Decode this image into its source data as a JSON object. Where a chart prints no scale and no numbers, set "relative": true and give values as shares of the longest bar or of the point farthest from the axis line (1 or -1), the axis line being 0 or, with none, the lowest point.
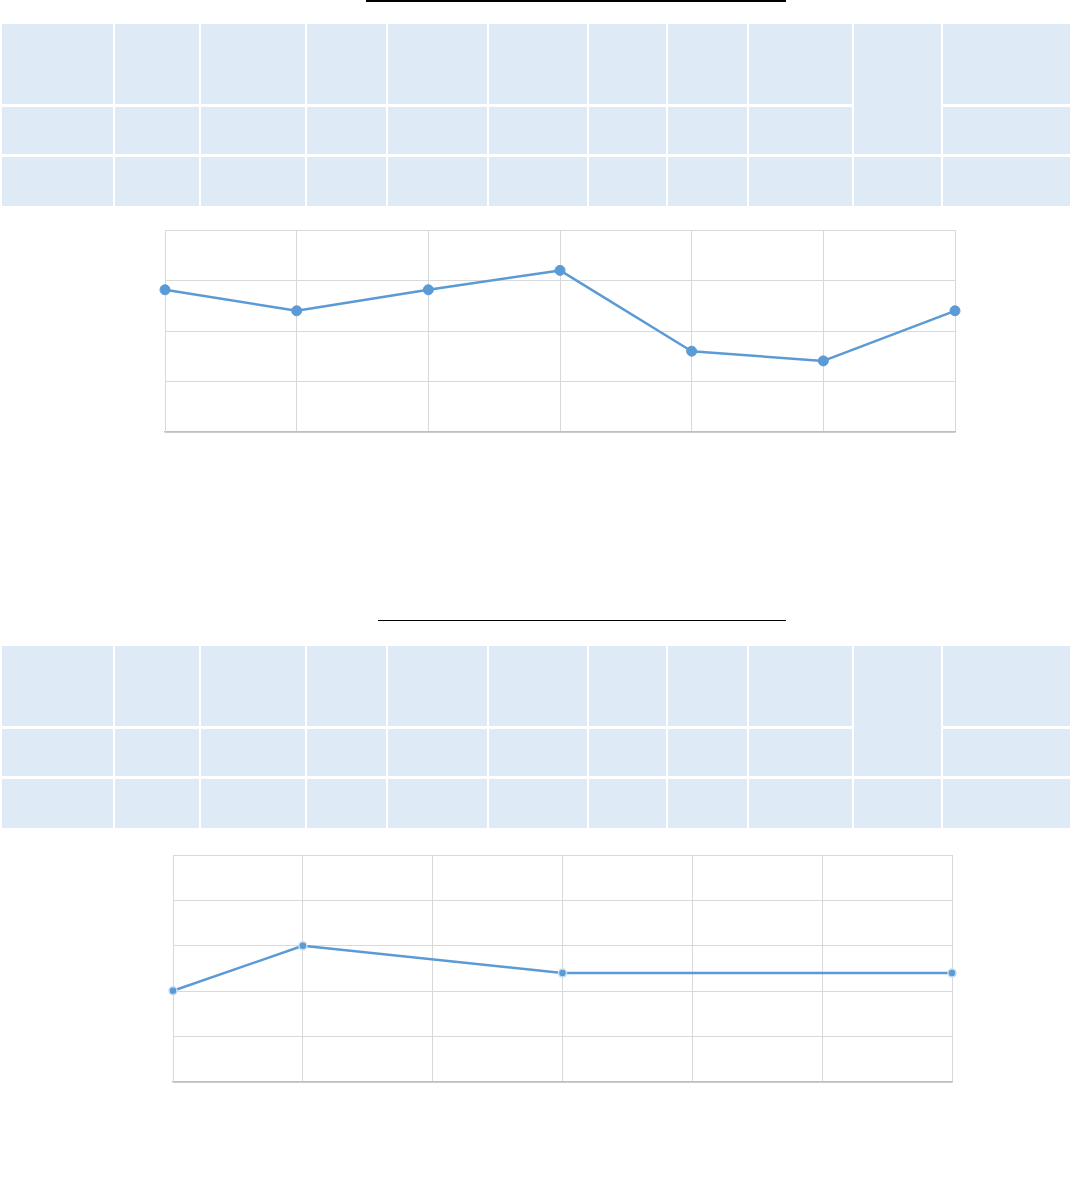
{
  "chart_data": [
    {
      "type": "line",
      "categories": [
        null,
        null,
        null,
        null,
        null,
        null,
        null
      ],
      "values": [
        0.88,
        0.75,
        0.88,
        1,
        0.5,
        0.44,
        0.75
      ],
      "color": "#5b9bd5",
      "relative": true,
      "grid": true,
      "marker": "circle",
      "line_style": "solid"
    },
    {
      "type": "line",
      "categories": [
        null,
        null,
        null,
        null,
        null,
        null,
        null
      ],
      "values": [
        0.67,
        1,
        null,
        0.8,
        null,
        null,
        0.8
      ],
      "color": "#5b9bd5",
      "relative": true,
      "grid": true,
      "marker": "circle",
      "line_style": "solid"
    }
  ]
}
